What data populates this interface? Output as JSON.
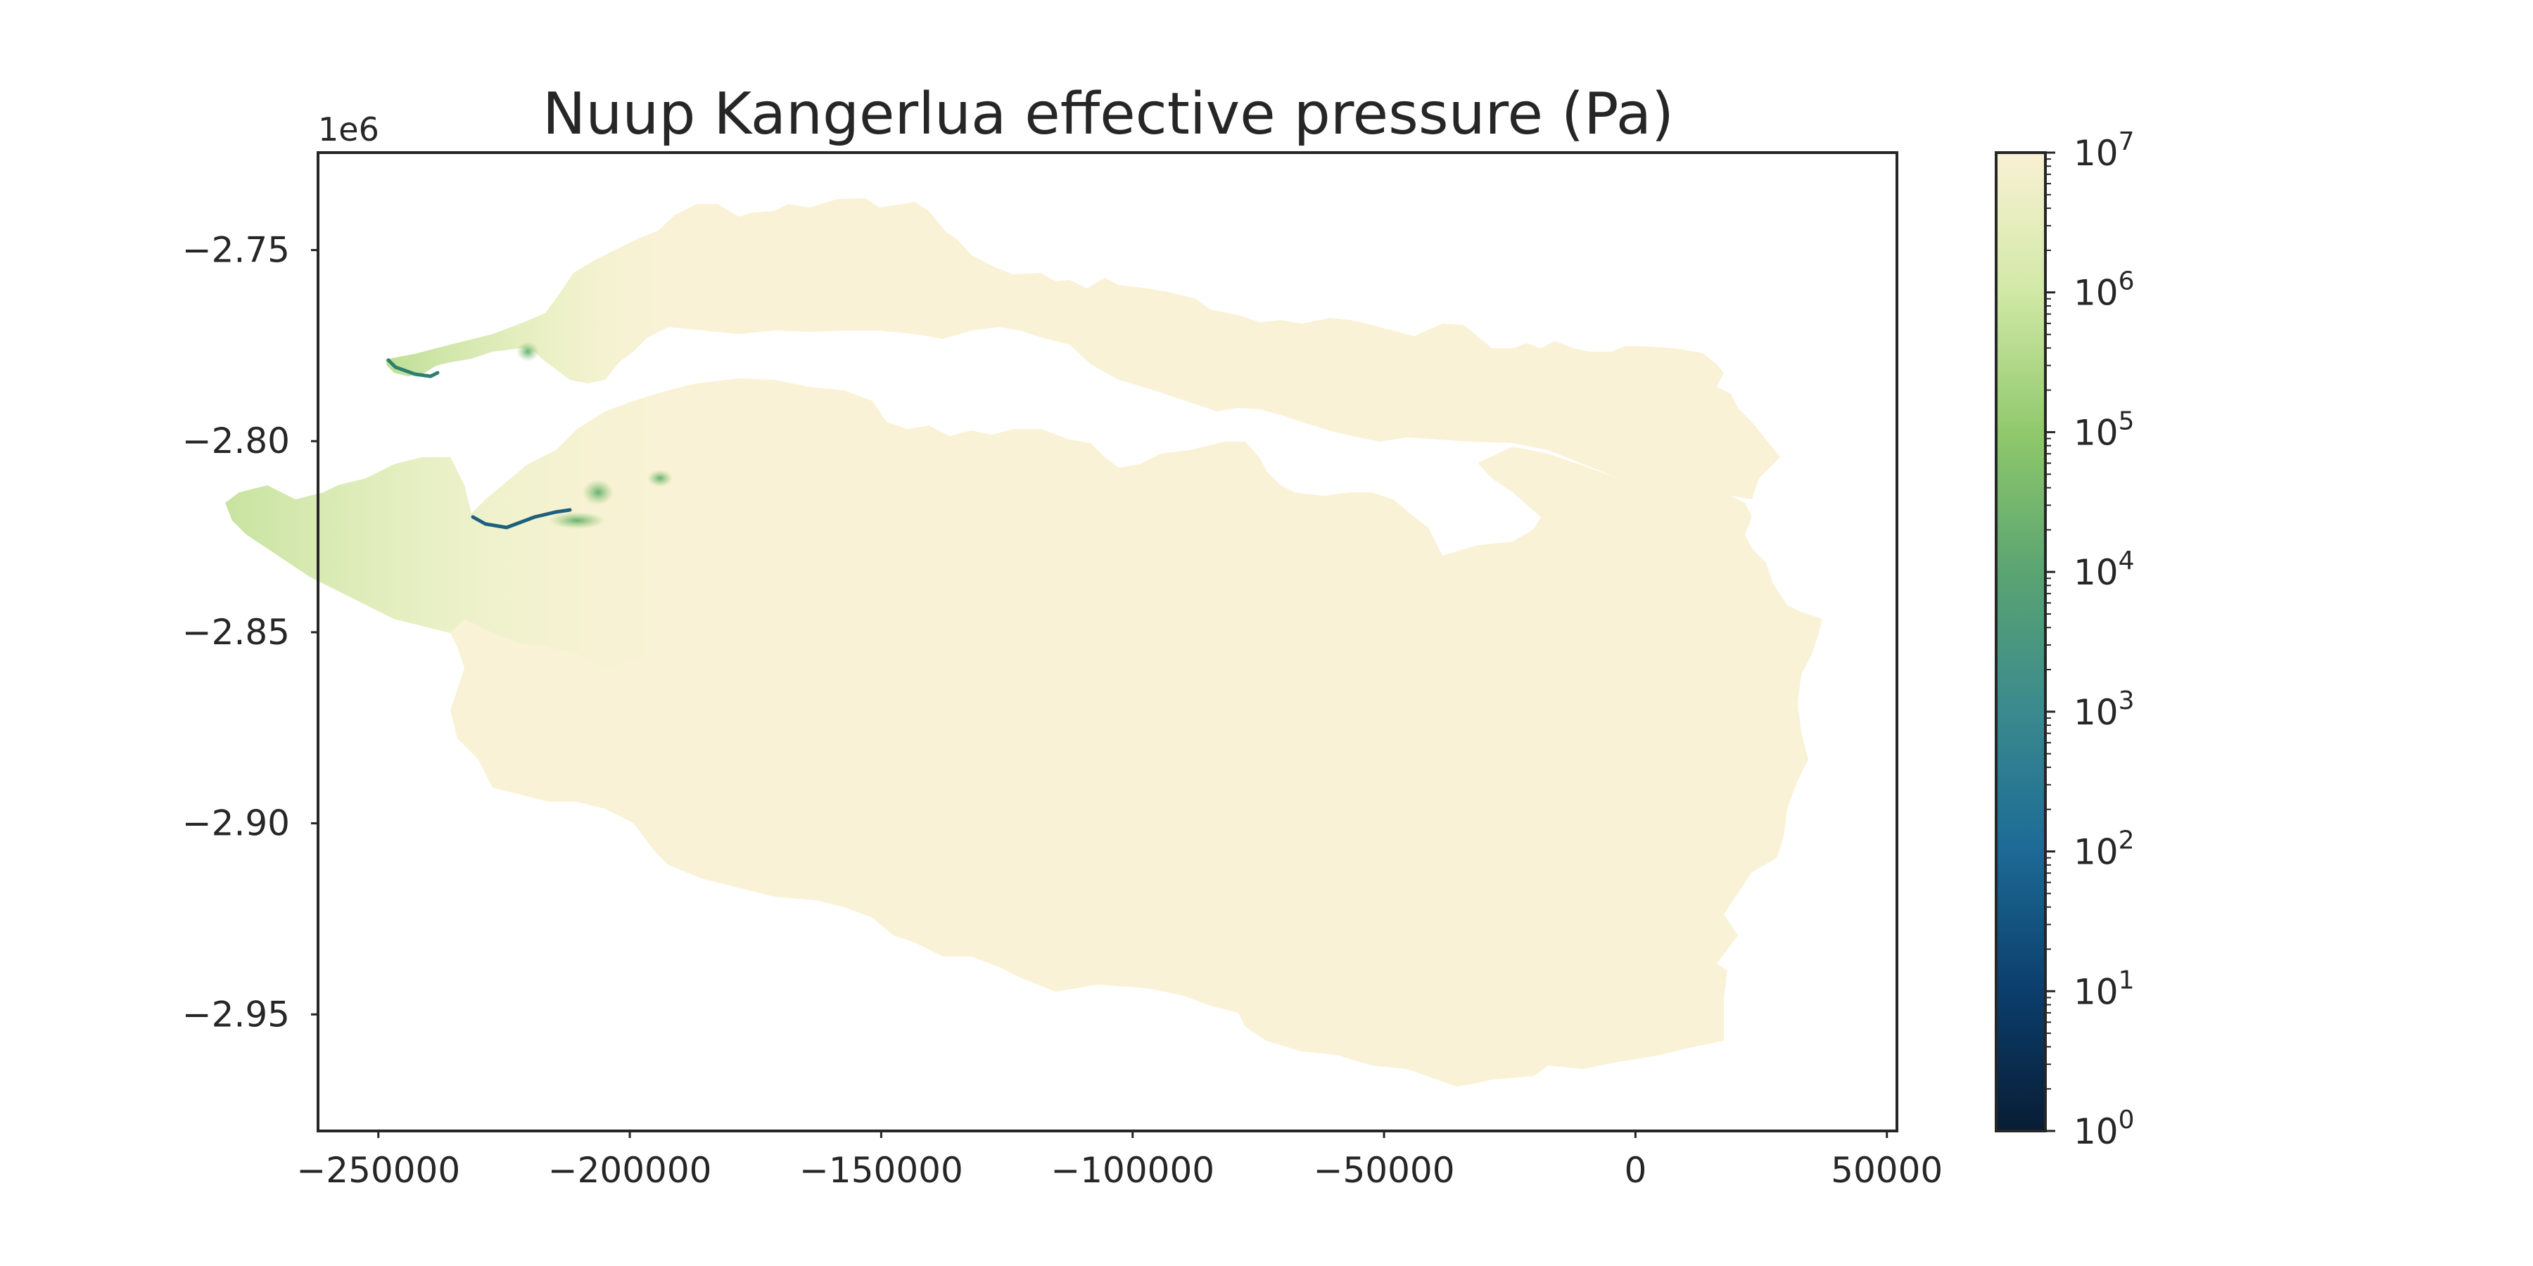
{
  "chart_data": {
    "type": "heatmap",
    "title": "Nuup Kangerlua effective pressure (Pa)",
    "xlabel": "",
    "ylabel": "",
    "x_ticks": [
      "−250000",
      "−200000",
      "−150000",
      "−100000",
      "−50000",
      "0",
      "50000"
    ],
    "x_tick_values": [
      -250000,
      -200000,
      -150000,
      -100000,
      -50000,
      0,
      50000
    ],
    "xlim": [
      -262000,
      52000
    ],
    "y_ticks": [
      "−2.75",
      "−2.80",
      "−2.85",
      "−2.90",
      "−2.95"
    ],
    "y_tick_values": [
      -2.75,
      -2.8,
      -2.85,
      -2.9,
      -2.95
    ],
    "y_offset_label": "1e6",
    "ylim": [
      -2.9805,
      -2.7245
    ],
    "grid": false,
    "colorbar": {
      "scale": "log",
      "range": [
        1,
        10000000
      ],
      "colormap": "YlGnBu_r",
      "tick_exponents": [
        "0",
        "1",
        "2",
        "3",
        "4",
        "5",
        "6",
        "7"
      ],
      "tick_values": [
        1,
        10,
        100,
        1000,
        10000,
        100000,
        1000000,
        10000000
      ],
      "colors": [
        "#081d34",
        "#0b3d6b",
        "#1d6b96",
        "#3a8a8e",
        "#5aa472",
        "#8ec86b",
        "#d2e9a7",
        "#f9f1d4"
      ]
    },
    "field": {
      "dominant_value_pa": 10000000,
      "dominant_color": "#faf2d7",
      "low_pressure_regions": [
        {
          "name": "western terminus of northern fjord arm",
          "approx_value_pa": 100000
        },
        {
          "name": "western terminus of southern fjord arm",
          "approx_value_pa": 10000
        },
        {
          "name": "inland patch near x=-194000",
          "approx_value_pa": 100000
        }
      ]
    }
  }
}
